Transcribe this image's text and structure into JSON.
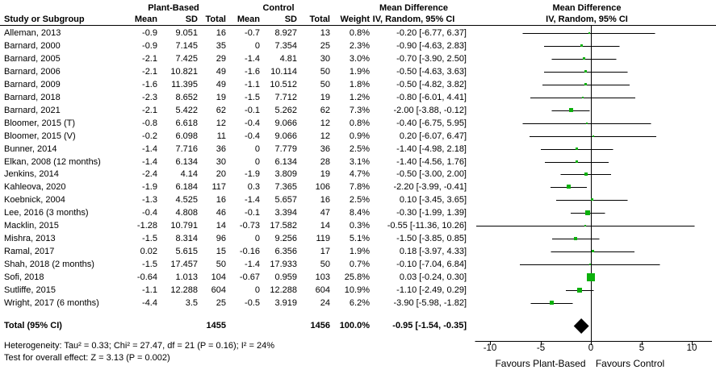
{
  "chart_data": {
    "type": "forest",
    "columns": {
      "study": "Study or Subgroup",
      "group1": "Plant-Based",
      "group2": "Control",
      "mean": "Mean",
      "sd": "SD",
      "total": "Total",
      "weight": "Weight",
      "md_title": "Mean Difference",
      "md_subtitle": "IV, Random, 95% CI",
      "plot_title": "Mean Difference",
      "plot_subtitle": "IV, Random, 95% CI"
    },
    "studies": [
      {
        "name": "Alleman, 2013",
        "g1_mean": "-0.9",
        "g1_sd": "9.051",
        "g1_total": "16",
        "g2_mean": "-0.7",
        "g2_sd": "8.927",
        "g2_total": "13",
        "weight": "0.8%",
        "weight_val": 0.8,
        "md": -0.2,
        "ci_low": -6.77,
        "ci_high": 6.37,
        "md_label": "-0.20 [-6.77, 6.37]"
      },
      {
        "name": "Barnard, 2000",
        "g1_mean": "-0.9",
        "g1_sd": "7.145",
        "g1_total": "35",
        "g2_mean": "0",
        "g2_sd": "7.354",
        "g2_total": "25",
        "weight": "2.3%",
        "weight_val": 2.3,
        "md": -0.9,
        "ci_low": -4.63,
        "ci_high": 2.83,
        "md_label": "-0.90 [-4.63, 2.83]"
      },
      {
        "name": "Barnard, 2005",
        "g1_mean": "-2.1",
        "g1_sd": "7.425",
        "g1_total": "29",
        "g2_mean": "-1.4",
        "g2_sd": "4.81",
        "g2_total": "30",
        "weight": "3.0%",
        "weight_val": 3.0,
        "md": -0.7,
        "ci_low": -3.9,
        "ci_high": 2.5,
        "md_label": "-0.70 [-3.90, 2.50]"
      },
      {
        "name": "Barnard, 2006",
        "g1_mean": "-2.1",
        "g1_sd": "10.821",
        "g1_total": "49",
        "g2_mean": "-1.6",
        "g2_sd": "10.114",
        "g2_total": "50",
        "weight": "1.9%",
        "weight_val": 1.9,
        "md": -0.5,
        "ci_low": -4.63,
        "ci_high": 3.63,
        "md_label": "-0.50 [-4.63, 3.63]"
      },
      {
        "name": "Barnard, 2009",
        "g1_mean": "-1.6",
        "g1_sd": "11.395",
        "g1_total": "49",
        "g2_mean": "-1.1",
        "g2_sd": "10.512",
        "g2_total": "50",
        "weight": "1.8%",
        "weight_val": 1.8,
        "md": -0.5,
        "ci_low": -4.82,
        "ci_high": 3.82,
        "md_label": "-0.50 [-4.82, 3.82]"
      },
      {
        "name": "Barnard, 2018",
        "g1_mean": "-2.3",
        "g1_sd": "8.652",
        "g1_total": "19",
        "g2_mean": "-1.5",
        "g2_sd": "7.712",
        "g2_total": "19",
        "weight": "1.2%",
        "weight_val": 1.2,
        "md": -0.8,
        "ci_low": -6.01,
        "ci_high": 4.41,
        "md_label": "-0.80 [-6.01, 4.41]"
      },
      {
        "name": "Barnard, 2021",
        "g1_mean": "-2.1",
        "g1_sd": "5.422",
        "g1_total": "62",
        "g2_mean": "-0.1",
        "g2_sd": "5.262",
        "g2_total": "62",
        "weight": "7.3%",
        "weight_val": 7.3,
        "md": -2.0,
        "ci_low": -3.88,
        "ci_high": -0.12,
        "md_label": "-2.00 [-3.88, -0.12]"
      },
      {
        "name": "Bloomer, 2015 (T)",
        "g1_mean": "-0.8",
        "g1_sd": "6.618",
        "g1_total": "12",
        "g2_mean": "-0.4",
        "g2_sd": "9.066",
        "g2_total": "12",
        "weight": "0.8%",
        "weight_val": 0.8,
        "md": -0.4,
        "ci_low": -6.75,
        "ci_high": 5.95,
        "md_label": "-0.40 [-6.75, 5.95]"
      },
      {
        "name": "Bloomer, 2015 (V)",
        "g1_mean": "-0.2",
        "g1_sd": "6.098",
        "g1_total": "11",
        "g2_mean": "-0.4",
        "g2_sd": "9.066",
        "g2_total": "12",
        "weight": "0.9%",
        "weight_val": 0.9,
        "md": 0.2,
        "ci_low": -6.07,
        "ci_high": 6.47,
        "md_label": "0.20 [-6.07, 6.47]"
      },
      {
        "name": "Bunner, 2014",
        "g1_mean": "-1.4",
        "g1_sd": "7.716",
        "g1_total": "36",
        "g2_mean": "0",
        "g2_sd": "7.779",
        "g2_total": "36",
        "weight": "2.5%",
        "weight_val": 2.5,
        "md": -1.4,
        "ci_low": -4.98,
        "ci_high": 2.18,
        "md_label": "-1.40 [-4.98, 2.18]"
      },
      {
        "name": "Elkan, 2008 (12 months)",
        "g1_mean": "-1.4",
        "g1_sd": "6.134",
        "g1_total": "30",
        "g2_mean": "0",
        "g2_sd": "6.134",
        "g2_total": "28",
        "weight": "3.1%",
        "weight_val": 3.1,
        "md": -1.4,
        "ci_low": -4.56,
        "ci_high": 1.76,
        "md_label": "-1.40 [-4.56, 1.76]"
      },
      {
        "name": "Jenkins, 2014",
        "g1_mean": "-2.4",
        "g1_sd": "4.14",
        "g1_total": "20",
        "g2_mean": "-1.9",
        "g2_sd": "3.809",
        "g2_total": "19",
        "weight": "4.7%",
        "weight_val": 4.7,
        "md": -0.5,
        "ci_low": -3.0,
        "ci_high": 2.0,
        "md_label": "-0.50 [-3.00, 2.00]"
      },
      {
        "name": "Kahleova, 2020",
        "g1_mean": "-1.9",
        "g1_sd": "6.184",
        "g1_total": "117",
        "g2_mean": "0.3",
        "g2_sd": "7.365",
        "g2_total": "106",
        "weight": "7.8%",
        "weight_val": 7.8,
        "md": -2.2,
        "ci_low": -3.99,
        "ci_high": -0.41,
        "md_label": "-2.20 [-3.99, -0.41]"
      },
      {
        "name": "Koebnick, 2004",
        "g1_mean": "-1.3",
        "g1_sd": "4.525",
        "g1_total": "16",
        "g2_mean": "-1.4",
        "g2_sd": "5.657",
        "g2_total": "16",
        "weight": "2.5%",
        "weight_val": 2.5,
        "md": 0.1,
        "ci_low": -3.45,
        "ci_high": 3.65,
        "md_label": "0.10 [-3.45, 3.65]"
      },
      {
        "name": "Lee, 2016 (3 months)",
        "g1_mean": "-0.4",
        "g1_sd": "4.808",
        "g1_total": "46",
        "g2_mean": "-0.1",
        "g2_sd": "3.394",
        "g2_total": "47",
        "weight": "8.4%",
        "weight_val": 8.4,
        "md": -0.3,
        "ci_low": -1.99,
        "ci_high": 1.39,
        "md_label": "-0.30 [-1.99, 1.39]"
      },
      {
        "name": "Macklin, 2015",
        "g1_mean": "-1.28",
        "g1_sd": "10.791",
        "g1_total": "14",
        "g2_mean": "-0.73",
        "g2_sd": "17.582",
        "g2_total": "14",
        "weight": "0.3%",
        "weight_val": 0.3,
        "md": -0.55,
        "ci_low": -11.36,
        "ci_high": 10.26,
        "md_label": "-0.55 [-11.36, 10.26]"
      },
      {
        "name": "Mishra, 2013",
        "g1_mean": "-1.5",
        "g1_sd": "8.314",
        "g1_total": "96",
        "g2_mean": "0",
        "g2_sd": "9.256",
        "g2_total": "119",
        "weight": "5.1%",
        "weight_val": 5.1,
        "md": -1.5,
        "ci_low": -3.85,
        "ci_high": 0.85,
        "md_label": "-1.50 [-3.85, 0.85]"
      },
      {
        "name": "Ramal, 2017",
        "g1_mean": "0.02",
        "g1_sd": "5.615",
        "g1_total": "15",
        "g2_mean": "-0.16",
        "g2_sd": "6.356",
        "g2_total": "17",
        "weight": "1.9%",
        "weight_val": 1.9,
        "md": 0.18,
        "ci_low": -3.97,
        "ci_high": 4.33,
        "md_label": "0.18 [-3.97, 4.33]"
      },
      {
        "name": "Shah, 2018 (2 months)",
        "g1_mean": "-1.5",
        "g1_sd": "17.457",
        "g1_total": "50",
        "g2_mean": "-1.4",
        "g2_sd": "17.933",
        "g2_total": "50",
        "weight": "0.7%",
        "weight_val": 0.7,
        "md": -0.1,
        "ci_low": -7.04,
        "ci_high": 6.84,
        "md_label": "-0.10 [-7.04, 6.84]"
      },
      {
        "name": "Sofi, 2018",
        "g1_mean": "-0.64",
        "g1_sd": "1.013",
        "g1_total": "104",
        "g2_mean": "-0.67",
        "g2_sd": "0.959",
        "g2_total": "103",
        "weight": "25.8%",
        "weight_val": 25.8,
        "md": 0.03,
        "ci_low": -0.24,
        "ci_high": 0.3,
        "md_label": "0.03 [-0.24, 0.30]"
      },
      {
        "name": "Sutliffe, 2015",
        "g1_mean": "-1.1",
        "g1_sd": "12.288",
        "g1_total": "604",
        "g2_mean": "0",
        "g2_sd": "12.288",
        "g2_total": "604",
        "weight": "10.9%",
        "weight_val": 10.9,
        "md": -1.1,
        "ci_low": -2.49,
        "ci_high": 0.29,
        "md_label": "-1.10 [-2.49, 0.29]"
      },
      {
        "name": "Wright, 2017 (6 months)",
        "g1_mean": "-4.4",
        "g1_sd": "3.5",
        "g1_total": "25",
        "g2_mean": "-0.5",
        "g2_sd": "3.919",
        "g2_total": "24",
        "weight": "6.2%",
        "weight_val": 6.2,
        "md": -3.9,
        "ci_low": -5.98,
        "ci_high": -1.82,
        "md_label": "-3.90 [-5.98, -1.82]"
      }
    ],
    "total": {
      "label": "Total (95% CI)",
      "g1_total": "1455",
      "g2_total": "1456",
      "weight": "100.0%",
      "md": -0.95,
      "ci_low": -1.54,
      "ci_high": -0.35,
      "md_label": "-0.95 [-1.54, -0.35]"
    },
    "heterogeneity": "Heterogeneity: Tau² = 0.33; Chi² = 27.47, df = 21 (P = 0.16); I² = 24%",
    "overall_effect": "Test for overall effect: Z = 3.13 (P = 0.002)",
    "axis": {
      "ticks": [
        -10,
        -5,
        0,
        5,
        10
      ],
      "xlim": [
        -11.5,
        12
      ],
      "label_left": "Favours Plant-Based",
      "label_right": "Favours Control"
    },
    "colors": {
      "square": "#0cb00c",
      "diamond": "#000000",
      "line": "#000000",
      "text": "#000000"
    }
  }
}
